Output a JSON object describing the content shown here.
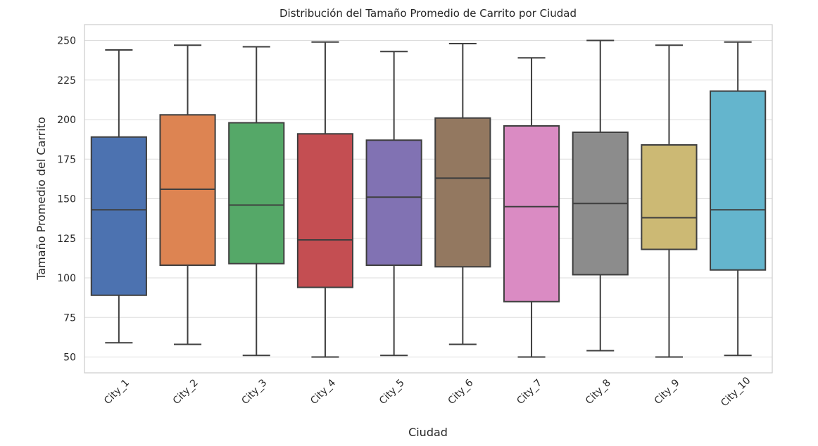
{
  "chart_data": {
    "type": "box",
    "title": "Distribución del Tamaño Promedio de Carrito por Ciudad",
    "xlabel": "Ciudad",
    "ylabel": "Tamaño Promedio del Carrito",
    "ylim": [
      40,
      260
    ],
    "yticks": [
      50,
      75,
      100,
      125,
      150,
      175,
      200,
      225,
      250
    ],
    "grid": true,
    "categories": [
      "City_1",
      "City_2",
      "City_3",
      "City_4",
      "City_5",
      "City_6",
      "City_7",
      "City_8",
      "City_9",
      "City_10"
    ],
    "boxes": [
      {
        "min": 59,
        "q1": 89,
        "median": 143,
        "q3": 189,
        "max": 244,
        "color": "#4c72b0"
      },
      {
        "min": 58,
        "q1": 108,
        "median": 156,
        "q3": 203,
        "max": 247,
        "color": "#dd8452"
      },
      {
        "min": 51,
        "q1": 109,
        "median": 146,
        "q3": 198,
        "max": 246,
        "color": "#55a868"
      },
      {
        "min": 50,
        "q1": 94,
        "median": 124,
        "q3": 191,
        "max": 249,
        "color": "#c44e52"
      },
      {
        "min": 51,
        "q1": 108,
        "median": 151,
        "q3": 187,
        "max": 243,
        "color": "#8172b3"
      },
      {
        "min": 58,
        "q1": 107,
        "median": 163,
        "q3": 201,
        "max": 248,
        "color": "#937860"
      },
      {
        "min": 50,
        "q1": 85,
        "median": 145,
        "q3": 196,
        "max": 239,
        "color": "#da8bc3"
      },
      {
        "min": 54,
        "q1": 102,
        "median": 147,
        "q3": 192,
        "max": 250,
        "color": "#8c8c8c"
      },
      {
        "min": 50,
        "q1": 118,
        "median": 138,
        "q3": 184,
        "max": 247,
        "color": "#ccb974"
      },
      {
        "min": 51,
        "q1": 105,
        "median": 143,
        "q3": 218,
        "max": 249,
        "color": "#64b5cd"
      }
    ]
  }
}
